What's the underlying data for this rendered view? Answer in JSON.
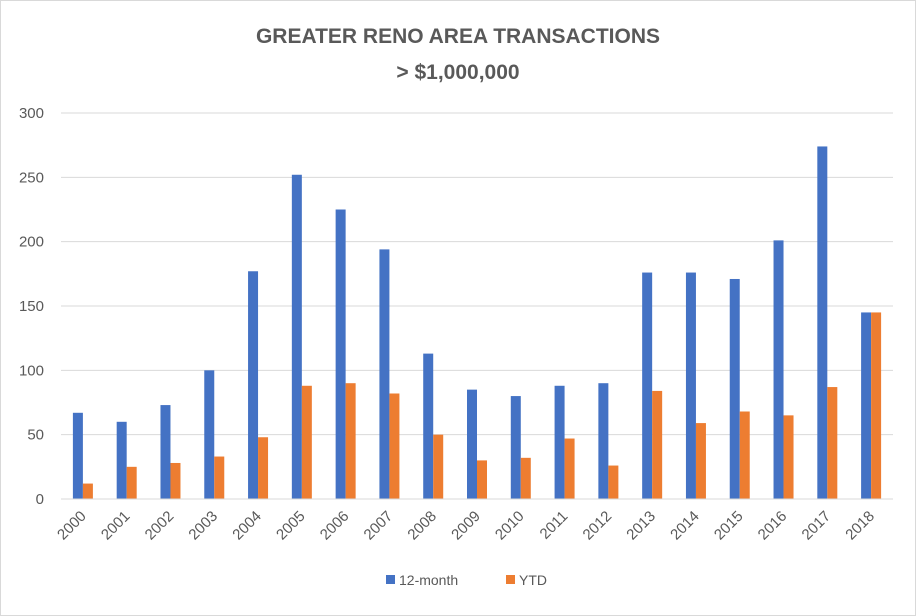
{
  "chart_data": {
    "type": "bar",
    "title": "GREATER RENO AREA TRANSACTIONS",
    "subtitle": "> $1,000,000",
    "xlabel": "",
    "ylabel": "",
    "ylim": [
      0,
      300
    ],
    "yticks": [
      0,
      50,
      100,
      150,
      200,
      250,
      300
    ],
    "grid": true,
    "legend_position": "bottom",
    "categories": [
      "2000",
      "2001",
      "2002",
      "2003",
      "2004",
      "2005",
      "2006",
      "2007",
      "2008",
      "2009",
      "2010",
      "2011",
      "2012",
      "2013",
      "2014",
      "2015",
      "2016",
      "2017",
      "2018"
    ],
    "series": [
      {
        "name": "12-month",
        "color": "#4472C4",
        "values": [
          67,
          60,
          73,
          100,
          177,
          252,
          225,
          194,
          113,
          85,
          80,
          88,
          90,
          176,
          176,
          171,
          201,
          274,
          145
        ]
      },
      {
        "name": "YTD",
        "color": "#ED7D31",
        "values": [
          12,
          25,
          28,
          33,
          48,
          88,
          90,
          82,
          50,
          30,
          32,
          47,
          26,
          84,
          59,
          68,
          65,
          87,
          145
        ]
      }
    ]
  }
}
